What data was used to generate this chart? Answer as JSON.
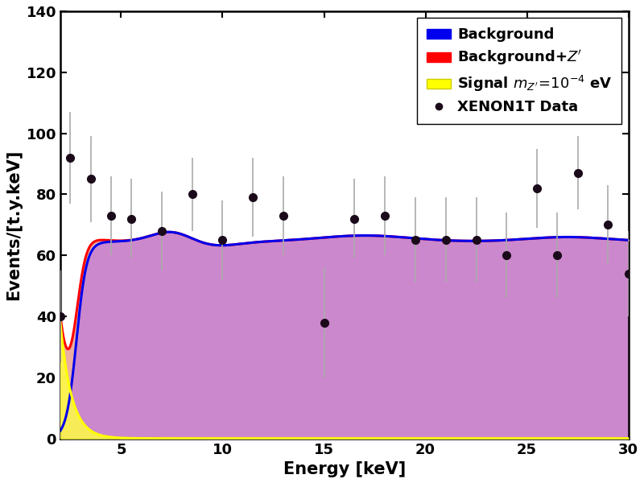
{
  "title": "",
  "xlabel": "Energy [keV]",
  "ylabel": "Events/[t.y.keV]",
  "xlim": [
    2,
    30
  ],
  "ylim": [
    0,
    140
  ],
  "xticks": [
    5,
    10,
    15,
    20,
    25,
    30
  ],
  "yticks": [
    0,
    20,
    40,
    60,
    80,
    100,
    120,
    140
  ],
  "bg_fill_color": "#cc88cc",
  "signal_fill_color": "#e8b090",
  "yellow_fill_color": "#ffff44",
  "bg_line_color": "#0000ff",
  "bgzp_line_color": "#ff0000",
  "signal_line_color": "#ffff00",
  "data_color": "#1a0a1a",
  "error_color": "#aaaaaa",
  "data_points_x": [
    2.0,
    2.5,
    3.5,
    4.5,
    5.5,
    7.0,
    8.5,
    10.0,
    11.5,
    13.0,
    15.0,
    16.5,
    18.0,
    19.5,
    21.0,
    22.5,
    24.0,
    25.5,
    26.5,
    27.5,
    29.0,
    30.0
  ],
  "data_points_y": [
    40,
    92,
    85,
    73,
    72,
    68,
    80,
    65,
    79,
    73,
    38,
    72,
    73,
    65,
    65,
    65,
    60,
    82,
    60,
    87,
    70,
    54
  ],
  "data_errors": [
    15,
    15,
    14,
    13,
    13,
    13,
    12,
    13,
    13,
    13,
    18,
    13,
    13,
    14,
    14,
    14,
    14,
    13,
    14,
    12,
    13,
    14
  ]
}
